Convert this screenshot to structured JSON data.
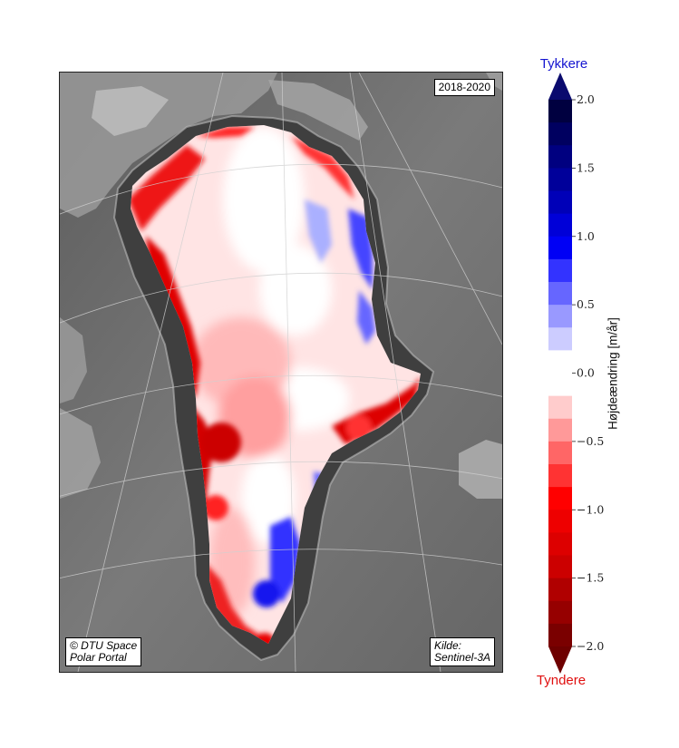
{
  "map": {
    "period_label": "2018-2020",
    "copyright_line1": "©  DTU Space",
    "copyright_line2": "Polar Portal",
    "source_line1": "Kilde:",
    "source_line2": "Sentinel-3A",
    "background_color": "#6e6e6e",
    "ice_base_color": "#ffe0e0"
  },
  "colorbar": {
    "top_title": "Tykkere",
    "bottom_title": "Tyndere",
    "axis_label": "Højdeændring [m/år]",
    "min": -2.0,
    "max": 2.0,
    "tick_labels": [
      "2.0",
      "1.5",
      "1.0",
      "0.5",
      "0.0",
      "−0.5",
      "−1.0",
      "−1.5",
      "−2.0"
    ],
    "tick_values": [
      2.0,
      1.5,
      1.0,
      0.5,
      0.0,
      -0.5,
      -1.0,
      -1.5,
      -2.0
    ],
    "over_color": "#0a0a6e",
    "under_color": "#6e0000",
    "colors_top_to_bottom": [
      "#000040",
      "#000060",
      "#000080",
      "#00009a",
      "#0000b8",
      "#0000d8",
      "#0000f5",
      "#3333ff",
      "#6666ff",
      "#9999ff",
      "#ccccff",
      "#ffffff",
      "#ffffff",
      "#ffcccc",
      "#ff9999",
      "#ff6666",
      "#ff3333",
      "#ff0000",
      "#ee0000",
      "#dd0000",
      "#cc0000",
      "#b00000",
      "#960000",
      "#7a0000"
    ]
  }
}
